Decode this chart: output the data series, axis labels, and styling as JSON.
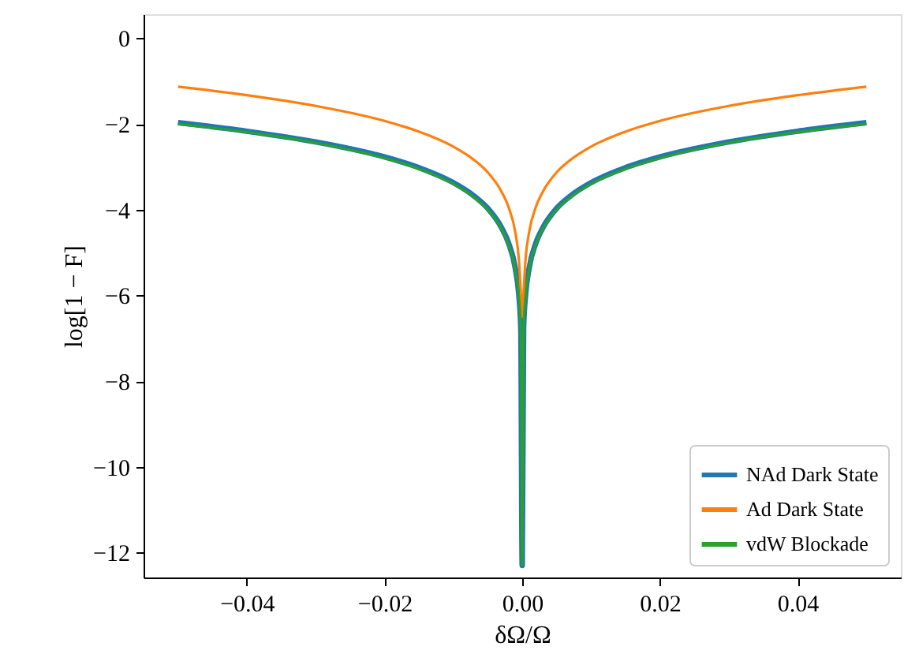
{
  "chart_data": {
    "type": "line",
    "xlabel": "δΩ/Ω",
    "ylabel": "log[1 − F]",
    "x": [
      -0.05,
      -0.04,
      -0.03,
      -0.02,
      -0.015,
      -0.01,
      -0.007,
      -0.005,
      -0.003,
      -0.002,
      -0.001,
      -0.0005,
      -0.0002,
      0,
      0.0002,
      0.0005,
      0.001,
      0.002,
      0.003,
      0.005,
      0.007,
      0.01,
      0.015,
      0.02,
      0.03,
      0.04,
      0.05
    ],
    "series": [
      {
        "name": "NAd Dark State",
        "color": "#1f77b4",
        "values": [
          -1.97,
          -2.17,
          -2.42,
          -2.77,
          -3.02,
          -3.37,
          -3.68,
          -3.97,
          -4.42,
          -4.77,
          -5.37,
          -5.97,
          -6.77,
          -12.3,
          -6.77,
          -5.97,
          -5.37,
          -4.77,
          -4.42,
          -3.97,
          -3.68,
          -3.37,
          -3.02,
          -2.77,
          -2.42,
          -2.17,
          -1.97
        ]
      },
      {
        "name": "Ad Dark State",
        "color": "#ff7f0e",
        "values": [
          -1.13,
          -1.33,
          -1.58,
          -1.93,
          -2.18,
          -2.53,
          -2.84,
          -3.13,
          -3.58,
          -3.93,
          -4.53,
          -5.13,
          -5.93,
          -6.5,
          -5.93,
          -5.13,
          -4.53,
          -3.93,
          -3.58,
          -3.13,
          -2.84,
          -2.53,
          -2.18,
          -1.93,
          -1.58,
          -1.33,
          -1.13
        ]
      },
      {
        "name": "vdW Blockade",
        "color": "#2ca02c",
        "values": [
          -2.0,
          -2.19,
          -2.44,
          -2.8,
          -3.05,
          -3.4,
          -3.71,
          -4.0,
          -4.44,
          -4.8,
          -5.4,
          -6.0,
          -6.8,
          -12.3,
          -6.8,
          -6.0,
          -5.4,
          -4.8,
          -4.44,
          -4.0,
          -3.71,
          -3.4,
          -3.05,
          -2.8,
          -2.44,
          -2.19,
          -2.0
        ]
      }
    ],
    "xlim": [
      -0.055,
      0.055
    ],
    "xticks": [
      {
        "value": -0.04,
        "label": "−0.04"
      },
      {
        "value": -0.02,
        "label": "−0.02"
      },
      {
        "value": 0,
        "label": "0.00"
      },
      {
        "value": 0.02,
        "label": "0.02"
      },
      {
        "value": 0.04,
        "label": "0.04"
      }
    ],
    "ylim": [
      -12.58,
      0.56
    ],
    "yticks": [
      {
        "value": -12,
        "label": "−12"
      },
      {
        "value": -10,
        "label": "−10"
      },
      {
        "value": -8,
        "label": "−8"
      },
      {
        "value": -6,
        "label": "−6"
      },
      {
        "value": -4,
        "label": "−4"
      },
      {
        "value": -2,
        "label": "−2"
      },
      0
    ],
    "grid": false,
    "legend": "bottom right",
    "marker": "none",
    "line_style": "solid"
  }
}
